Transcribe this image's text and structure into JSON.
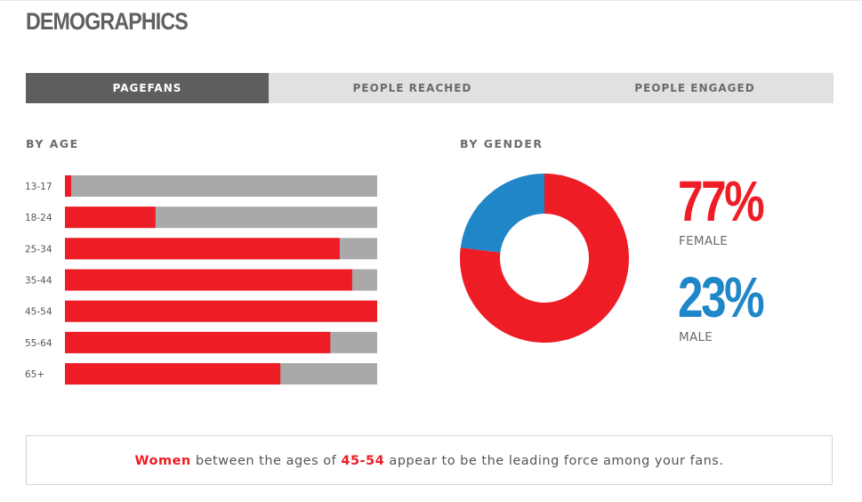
{
  "header": {
    "title": "DEMOGRAPHICS"
  },
  "tabs": [
    {
      "label": "PAGEFANS",
      "active": true
    },
    {
      "label": "PEOPLE REACHED",
      "active": false
    },
    {
      "label": "PEOPLE ENGAGED",
      "active": false
    }
  ],
  "age_section": {
    "label": "BY AGE"
  },
  "gender_section": {
    "label": "BY GENDER",
    "female_pct": "77%",
    "female_label": "FEMALE",
    "male_pct": "23%",
    "male_label": "MALE"
  },
  "insight": {
    "part1": "Women",
    "part2": " between the ages of ",
    "part3": "45-54",
    "part4": " appear to be the leading force among your fans."
  },
  "colors": {
    "accent": "#ee1c25",
    "male": "#1f86c7",
    "track": "#a9a9a9",
    "tab_active": "#5e5e5e",
    "tab_inactive": "#e1e1e1"
  },
  "chart_data": [
    {
      "type": "bar",
      "orientation": "horizontal",
      "categories": [
        "13-17",
        "18-24",
        "25-34",
        "35-44",
        "45-54",
        "55-64",
        "65+"
      ],
      "values": [
        0.02,
        0.29,
        0.88,
        0.92,
        1.0,
        0.85,
        0.69
      ],
      "xlim": [
        0,
        1
      ]
    },
    {
      "type": "pie",
      "donut": true,
      "categories": [
        "FEMALE",
        "MALE"
      ],
      "values": [
        77,
        23
      ]
    }
  ]
}
